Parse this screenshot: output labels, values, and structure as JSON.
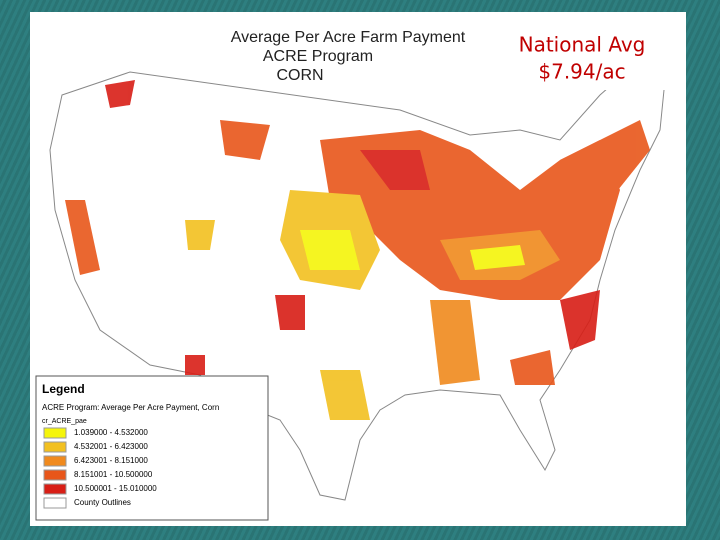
{
  "map": {
    "title": [
      "Average Per Acre Farm Payment",
      "ACRE Program",
      "CORN"
    ],
    "annotation": [
      "National Avg",
      "$7.94/ac"
    ],
    "legend": {
      "heading": "Legend",
      "subtitle": "ACRE Program: Average Per Acre Payment, Corn",
      "field": "cr_ACRE_pae",
      "classes": [
        {
          "label": "1.039000 - 4.532000",
          "color": "#f5f50a"
        },
        {
          "label": "4.532001 - 6.423000",
          "color": "#f2c020"
        },
        {
          "label": "6.423001 - 8.151000",
          "color": "#f08a1e"
        },
        {
          "label": "8.151001 - 10.500000",
          "color": "#e8561a"
        },
        {
          "label": "10.500001 - 15.010000",
          "color": "#d81e16"
        }
      ],
      "outline": "County Outlines"
    }
  }
}
